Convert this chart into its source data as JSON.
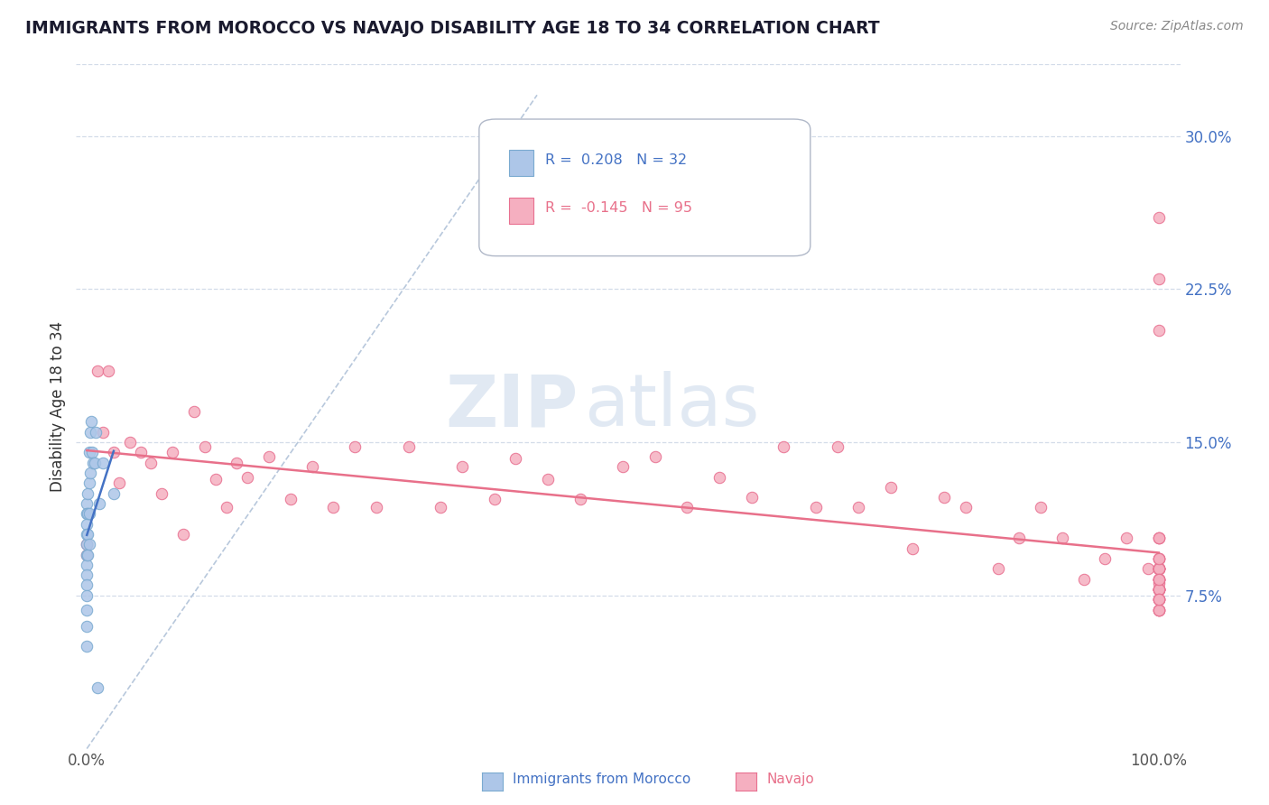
{
  "title": "IMMIGRANTS FROM MOROCCO VS NAVAJO DISABILITY AGE 18 TO 34 CORRELATION CHART",
  "source_text": "Source: ZipAtlas.com",
  "ylabel": "Disability Age 18 to 34",
  "xlim": [
    -0.01,
    1.02
  ],
  "ylim": [
    0.0,
    0.335
  ],
  "xtick_labels": [
    "0.0%",
    "100.0%"
  ],
  "xtick_positions": [
    0.0,
    1.0
  ],
  "ytick_labels": [
    "7.5%",
    "15.0%",
    "22.5%",
    "30.0%"
  ],
  "ytick_positions": [
    0.075,
    0.15,
    0.225,
    0.3
  ],
  "morocco_color": "#adc6e8",
  "navajo_color": "#f5afc0",
  "morocco_edge": "#7aaad0",
  "navajo_edge": "#e87090",
  "morocco_trendline_color": "#4472c4",
  "navajo_trendline_color": "#e8708a",
  "diagonal_color": "#b8c8dc",
  "R_morocco": 0.208,
  "N_morocco": 32,
  "R_navajo": -0.145,
  "N_navajo": 95,
  "watermark_zip": "ZIP",
  "watermark_atlas": "atlas",
  "background_color": "#ffffff",
  "grid_color": "#c8d4e4",
  "legend_label_morocco": "Immigrants from Morocco",
  "legend_label_navajo": "Navajo",
  "morocco_x": [
    0.0,
    0.0,
    0.0,
    0.0,
    0.0,
    0.0,
    0.0,
    0.0,
    0.0,
    0.0,
    0.0,
    0.0,
    0.0,
    0.001,
    0.001,
    0.001,
    0.001,
    0.002,
    0.002,
    0.002,
    0.002,
    0.003,
    0.003,
    0.004,
    0.005,
    0.006,
    0.007,
    0.008,
    0.01,
    0.012,
    0.015,
    0.025
  ],
  "morocco_y": [
    0.12,
    0.115,
    0.11,
    0.105,
    0.1,
    0.095,
    0.09,
    0.085,
    0.08,
    0.075,
    0.068,
    0.06,
    0.05,
    0.125,
    0.115,
    0.105,
    0.095,
    0.145,
    0.13,
    0.115,
    0.1,
    0.155,
    0.135,
    0.16,
    0.145,
    0.14,
    0.14,
    0.155,
    0.03,
    0.12,
    0.14,
    0.125
  ],
  "navajo_x": [
    0.0,
    0.0,
    0.01,
    0.015,
    0.02,
    0.025,
    0.03,
    0.04,
    0.05,
    0.06,
    0.07,
    0.08,
    0.09,
    0.1,
    0.11,
    0.12,
    0.13,
    0.14,
    0.15,
    0.17,
    0.19,
    0.21,
    0.23,
    0.25,
    0.27,
    0.3,
    0.33,
    0.35,
    0.38,
    0.4,
    0.43,
    0.46,
    0.5,
    0.53,
    0.56,
    0.59,
    0.62,
    0.65,
    0.68,
    0.7,
    0.72,
    0.75,
    0.77,
    0.8,
    0.82,
    0.85,
    0.87,
    0.89,
    0.91,
    0.93,
    0.95,
    0.97,
    0.99,
    1.0,
    1.0,
    1.0,
    1.0,
    1.0,
    1.0,
    1.0,
    1.0,
    1.0,
    1.0,
    1.0,
    1.0,
    1.0,
    1.0,
    1.0,
    1.0,
    1.0,
    1.0,
    1.0,
    1.0,
    1.0,
    1.0,
    1.0,
    1.0,
    1.0,
    1.0,
    1.0,
    1.0,
    1.0,
    1.0,
    1.0,
    1.0,
    1.0,
    1.0,
    1.0,
    1.0,
    1.0,
    1.0,
    1.0,
    1.0,
    1.0,
    1.0
  ],
  "navajo_y": [
    0.1,
    0.095,
    0.185,
    0.155,
    0.185,
    0.145,
    0.13,
    0.15,
    0.145,
    0.14,
    0.125,
    0.145,
    0.105,
    0.165,
    0.148,
    0.132,
    0.118,
    0.14,
    0.133,
    0.143,
    0.122,
    0.138,
    0.118,
    0.148,
    0.118,
    0.148,
    0.118,
    0.138,
    0.122,
    0.142,
    0.132,
    0.122,
    0.138,
    0.143,
    0.118,
    0.133,
    0.123,
    0.148,
    0.118,
    0.148,
    0.118,
    0.128,
    0.098,
    0.123,
    0.118,
    0.088,
    0.103,
    0.118,
    0.103,
    0.083,
    0.093,
    0.103,
    0.088,
    0.103,
    0.093,
    0.088,
    0.078,
    0.068,
    0.088,
    0.078,
    0.073,
    0.093,
    0.083,
    0.088,
    0.103,
    0.078,
    0.073,
    0.088,
    0.083,
    0.078,
    0.068,
    0.073,
    0.083,
    0.078,
    0.088,
    0.093,
    0.078,
    0.068,
    0.083,
    0.088,
    0.081,
    0.26,
    0.23,
    0.205,
    0.088,
    0.078,
    0.068,
    0.088,
    0.083,
    0.078,
    0.103,
    0.083,
    0.073,
    0.093,
    0.073
  ]
}
